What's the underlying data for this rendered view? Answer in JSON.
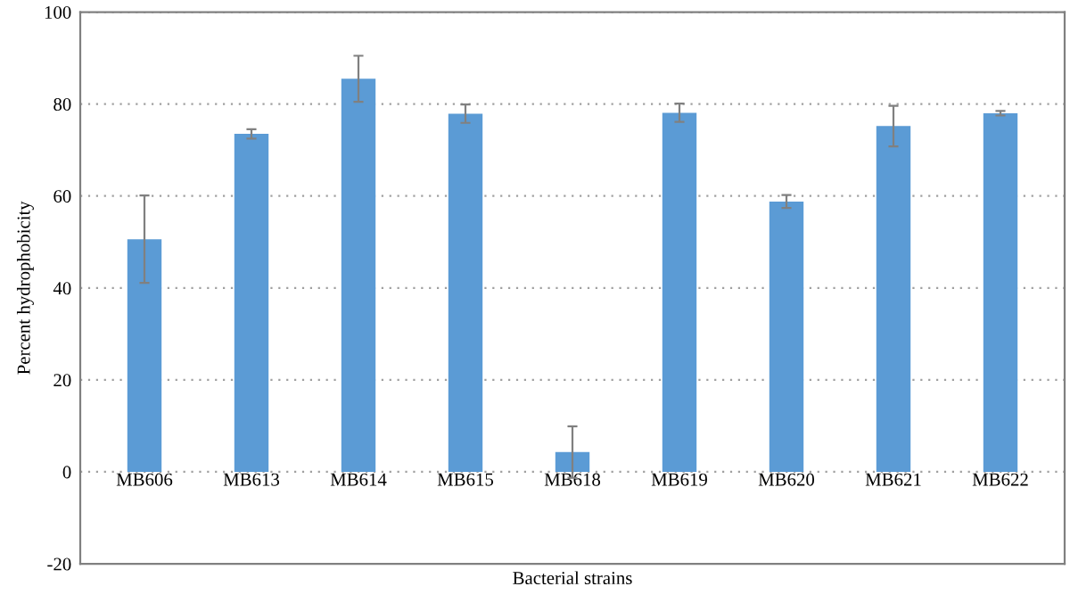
{
  "chart_data": {
    "type": "bar",
    "xlabel": "Bacterial strains",
    "ylabel": "Percent hydrophobicity",
    "categories": [
      "MB606",
      "MB613",
      "MB614",
      "MB615",
      "MB618",
      "MB619",
      "MB620",
      "MB621",
      "MB622"
    ],
    "values": [
      50.6,
      73.5,
      85.5,
      77.9,
      4.3,
      78.1,
      58.8,
      75.2,
      78.0
    ],
    "errors": [
      9.5,
      1,
      5,
      2,
      5.6,
      2,
      1.4,
      4.4,
      0.5
    ],
    "color": "#5b9bd5",
    "ylim": [
      -20,
      100
    ],
    "yticks": [
      -20,
      0,
      20,
      40,
      60,
      80,
      100
    ],
    "grid": "y"
  }
}
